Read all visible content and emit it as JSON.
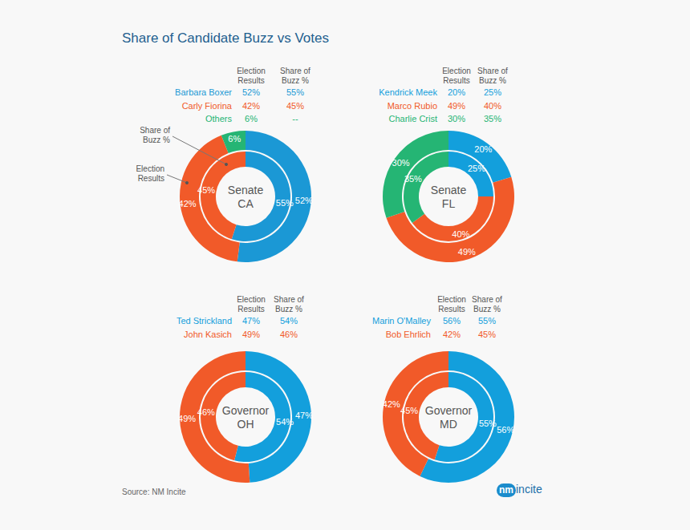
{
  "title": "Share of Candidate Buzz vs Votes",
  "source": "Source: NM Incite",
  "logo": {
    "mark": "nm",
    "text": "incite"
  },
  "chart_data": [
    {
      "type": "pie",
      "title": "Senate\nCA",
      "categories": [
        "Barbara Boxer",
        "Carly Fiorina",
        "Others"
      ],
      "colors": [
        "#1b98d5",
        "#f15a29",
        "#25b574"
      ],
      "data_labels": true,
      "series": [
        {
          "name": "Election\nResults",
          "values": [
            52,
            42,
            6
          ],
          "value_labels": [
            "52%",
            "42%",
            "6%"
          ]
        },
        {
          "name": "Share of\nBuzz %",
          "values": [
            55,
            45,
            null
          ],
          "value_labels": [
            "55%",
            "45%",
            "--"
          ]
        }
      ],
      "annotations": [
        "Share of\nBuzz %",
        "Election\nResults"
      ]
    },
    {
      "type": "pie",
      "title": "Senate\nFL",
      "categories": [
        "Kendrick Meek",
        "Marco Rubio",
        "Charlie Crist"
      ],
      "colors": [
        "#139fdc",
        "#f15a29",
        "#25b574"
      ],
      "data_labels": true,
      "series": [
        {
          "name": "Election\nResults",
          "values": [
            20,
            49,
            30
          ],
          "value_labels": [
            "20%",
            "49%",
            "30%"
          ]
        },
        {
          "name": "Share of\nBuzz %",
          "values": [
            25,
            40,
            35
          ],
          "value_labels": [
            "25%",
            "40%",
            "35%"
          ]
        }
      ]
    },
    {
      "type": "pie",
      "title": "Governor\nOH",
      "categories": [
        "Ted Strickland",
        "John Kasich"
      ],
      "colors": [
        "#139fdc",
        "#f15a29"
      ],
      "data_labels": true,
      "series": [
        {
          "name": "Election\nResults",
          "values": [
            47,
            49
          ],
          "value_labels": [
            "47%",
            "49%"
          ]
        },
        {
          "name": "Share of\nBuzz %",
          "values": [
            54,
            46
          ],
          "value_labels": [
            "54%",
            "46%"
          ]
        }
      ]
    },
    {
      "type": "pie",
      "title": "Governor\nMD",
      "categories": [
        "Marin O'Malley",
        "Bob Ehrlich"
      ],
      "colors": [
        "#139fdc",
        "#f15a29"
      ],
      "data_labels": true,
      "series": [
        {
          "name": "Election\nResults",
          "values": [
            56,
            42
          ],
          "value_labels": [
            "56%",
            "42%"
          ]
        },
        {
          "name": "Share of\nBuzz %",
          "values": [
            55,
            45
          ],
          "value_labels": [
            "55%",
            "45%"
          ]
        }
      ]
    }
  ]
}
